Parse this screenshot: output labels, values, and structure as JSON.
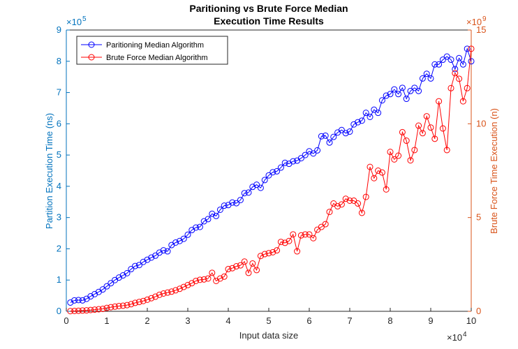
{
  "chart_data": {
    "type": "line",
    "title": [
      "Paritioning vs Brute Force Median",
      "Execution Time Results"
    ],
    "xlabel": "Input data size",
    "ylabel": "Partition Execution Time (ns)",
    "y2label": "Brute Force Time Execution (n)",
    "x_multiplier": [
      "×10",
      "4"
    ],
    "y_multiplier": [
      "×10",
      "5"
    ],
    "y2_multiplier": [
      "×10",
      "9"
    ],
    "x": [
      0.1,
      0.2,
      0.3,
      0.4,
      0.5,
      0.6,
      0.7,
      0.8,
      0.9,
      1.0,
      1.1,
      1.2,
      1.3,
      1.4,
      1.5,
      1.6,
      1.7,
      1.8,
      1.9,
      2.0,
      2.1,
      2.2,
      2.3,
      2.4,
      2.5,
      2.6,
      2.7,
      2.8,
      2.9,
      3.0,
      3.1,
      3.2,
      3.3,
      3.4,
      3.5,
      3.6,
      3.7,
      3.8,
      3.9,
      4.0,
      4.1,
      4.2,
      4.3,
      4.4,
      4.5,
      4.6,
      4.7,
      4.8,
      4.9,
      5.0,
      5.1,
      5.2,
      5.3,
      5.4,
      5.5,
      5.6,
      5.7,
      5.8,
      5.9,
      6.0,
      6.1,
      6.2,
      6.3,
      6.4,
      6.5,
      6.6,
      6.7,
      6.8,
      6.9,
      7.0,
      7.1,
      7.2,
      7.3,
      7.4,
      7.5,
      7.6,
      7.7,
      7.8,
      7.9,
      8.0,
      8.1,
      8.2,
      8.3,
      8.4,
      8.5,
      8.6,
      8.7,
      8.8,
      8.9,
      9.0,
      9.1,
      9.2,
      9.3,
      9.4,
      9.5,
      9.6,
      9.7,
      9.8,
      9.9,
      10.0
    ],
    "series": [
      {
        "name": "Paritioning Median Algorithm",
        "color": "#0000ff",
        "axis": "y",
        "values": [
          0.28,
          0.35,
          0.36,
          0.35,
          0.4,
          0.48,
          0.55,
          0.62,
          0.7,
          0.8,
          0.9,
          1.0,
          1.08,
          1.15,
          1.22,
          1.35,
          1.45,
          1.48,
          1.58,
          1.65,
          1.72,
          1.78,
          1.88,
          1.95,
          1.92,
          2.12,
          2.2,
          2.25,
          2.32,
          2.45,
          2.6,
          2.68,
          2.7,
          2.88,
          2.95,
          3.12,
          3.05,
          3.25,
          3.38,
          3.4,
          3.48,
          3.46,
          3.56,
          3.78,
          3.8,
          3.98,
          4.05,
          3.95,
          4.2,
          4.35,
          4.45,
          4.48,
          4.6,
          4.75,
          4.72,
          4.8,
          4.82,
          4.9,
          5.0,
          5.12,
          5.05,
          5.15,
          5.6,
          5.62,
          5.4,
          5.58,
          5.72,
          5.8,
          5.7,
          5.75,
          5.98,
          6.05,
          6.1,
          6.35,
          6.22,
          6.45,
          6.35,
          6.75,
          6.9,
          6.95,
          7.1,
          6.95,
          7.15,
          6.8,
          7.05,
          7.15,
          7.05,
          7.45,
          7.6,
          7.45,
          7.9,
          7.9,
          8.05,
          8.15,
          8.05,
          7.75,
          8.1,
          7.9,
          8.4,
          8.0
        ]
      },
      {
        "name": "Brute Force Median Algorithm",
        "color": "#ff0000",
        "axis": "y2",
        "values": [
          0.01,
          0.02,
          0.03,
          0.04,
          0.05,
          0.07,
          0.09,
          0.11,
          0.13,
          0.18,
          0.22,
          0.25,
          0.28,
          0.3,
          0.33,
          0.38,
          0.45,
          0.5,
          0.55,
          0.62,
          0.7,
          0.78,
          0.88,
          0.95,
          1.0,
          1.05,
          1.12,
          1.2,
          1.3,
          1.4,
          1.5,
          1.62,
          1.68,
          1.7,
          1.75,
          2.05,
          1.62,
          1.75,
          1.85,
          2.25,
          2.3,
          2.4,
          2.45,
          2.65,
          2.05,
          2.55,
          2.2,
          2.95,
          3.05,
          3.1,
          3.15,
          3.25,
          3.7,
          3.65,
          3.75,
          4.1,
          3.2,
          4.05,
          4.1,
          4.1,
          3.9,
          4.35,
          4.5,
          4.65,
          5.3,
          5.75,
          5.6,
          5.7,
          6.0,
          5.9,
          5.9,
          5.75,
          5.25,
          6.1,
          7.7,
          7.1,
          7.5,
          7.4,
          6.5,
          8.5,
          8.1,
          8.3,
          9.55,
          9.1,
          8.05,
          8.6,
          9.9,
          9.5,
          10.4,
          9.8,
          9.2,
          11.2,
          9.75,
          8.6,
          11.9,
          12.7,
          12.4,
          11.2,
          11.9,
          14.0
        ]
      }
    ],
    "xlim": [
      0,
      10
    ],
    "xticks": [
      0,
      1,
      2,
      3,
      4,
      5,
      6,
      7,
      8,
      9,
      10
    ],
    "ylim": [
      0,
      9
    ],
    "yticks": [
      0,
      1,
      2,
      3,
      4,
      5,
      6,
      7,
      8,
      9
    ],
    "y2lim": [
      0,
      15
    ],
    "y2ticks": [
      0,
      5,
      10,
      15
    ],
    "y_color": "#0072bd",
    "y2_color": "#d95319",
    "legend": "upper left"
  }
}
